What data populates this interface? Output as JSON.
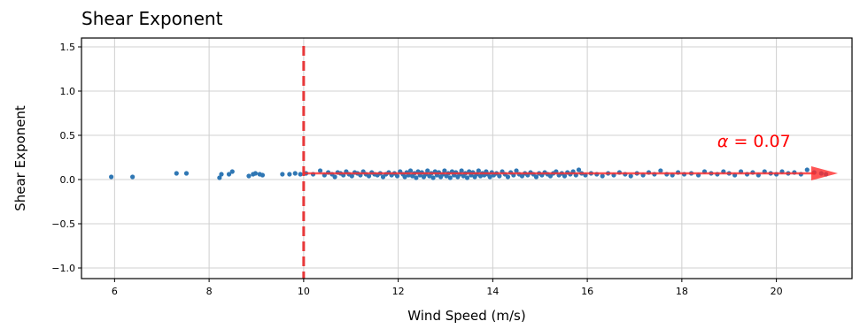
{
  "chart_data": {
    "type": "scatter",
    "title": "Shear Exponent",
    "xlabel": "Wind Speed (m/s)",
    "ylabel": "Shear Exponent",
    "xlim": [
      5.3,
      21.6
    ],
    "ylim": [
      -1.12,
      1.6
    ],
    "x_ticks": [
      6,
      8,
      10,
      12,
      14,
      16,
      18,
      20
    ],
    "x_tick_labels": [
      "6",
      "8",
      "10",
      "12",
      "14",
      "16",
      "18",
      "20"
    ],
    "y_ticks": [
      1.5,
      1.0,
      0.5,
      0.0,
      -0.5,
      -1.0
    ],
    "y_tick_labels": [
      "1.5",
      "1.0",
      "0.5",
      "0.0",
      "−0.5",
      "−1.0"
    ],
    "grid": true,
    "point_color": "#2f77b4",
    "cut_in_line": {
      "x": 10,
      "color": "#e8383a",
      "style": "dashed"
    },
    "fit_arrow": {
      "x_start": 10,
      "x_end": 21.3,
      "y": 0.07,
      "color": "#ff2a2a"
    },
    "annotation": {
      "text_symbol": "α",
      "text_value": " = 0.07",
      "color": "#ff0000"
    },
    "series": [
      {
        "points": [
          [
            5.93,
            0.03
          ],
          [
            6.38,
            0.03
          ],
          [
            7.31,
            0.07
          ],
          [
            7.52,
            0.07
          ],
          [
            8.22,
            0.02
          ],
          [
            8.26,
            0.06
          ],
          [
            8.42,
            0.06
          ],
          [
            8.49,
            0.09
          ],
          [
            8.84,
            0.04
          ],
          [
            8.93,
            0.06
          ],
          [
            8.98,
            0.07
          ],
          [
            9.07,
            0.06
          ],
          [
            9.13,
            0.05
          ],
          [
            9.55,
            0.06
          ],
          [
            9.7,
            0.06
          ],
          [
            9.82,
            0.07
          ],
          [
            9.93,
            0.06
          ],
          [
            10.05,
            0.07
          ],
          [
            10.2,
            0.06
          ],
          [
            10.35,
            0.1
          ],
          [
            10.44,
            0.05
          ],
          [
            10.52,
            0.08
          ],
          [
            10.6,
            0.06
          ],
          [
            10.66,
            0.03
          ],
          [
            10.72,
            0.08
          ],
          [
            10.78,
            0.07
          ],
          [
            10.84,
            0.05
          ],
          [
            10.9,
            0.09
          ],
          [
            10.96,
            0.06
          ],
          [
            11.02,
            0.04
          ],
          [
            11.08,
            0.08
          ],
          [
            11.14,
            0.07
          ],
          [
            11.2,
            0.05
          ],
          [
            11.26,
            0.09
          ],
          [
            11.32,
            0.06
          ],
          [
            11.38,
            0.04
          ],
          [
            11.44,
            0.08
          ],
          [
            11.5,
            0.06
          ],
          [
            11.56,
            0.05
          ],
          [
            11.62,
            0.07
          ],
          [
            11.68,
            0.03
          ],
          [
            11.74,
            0.06
          ],
          [
            11.8,
            0.08
          ],
          [
            11.86,
            0.05
          ],
          [
            11.92,
            0.07
          ],
          [
            11.98,
            0.04
          ],
          [
            12.04,
            0.09
          ],
          [
            12.1,
            0.06
          ],
          [
            12.14,
            0.03
          ],
          [
            12.18,
            0.08
          ],
          [
            12.22,
            0.05
          ],
          [
            12.26,
            0.1
          ],
          [
            12.3,
            0.04
          ],
          [
            12.34,
            0.07
          ],
          [
            12.38,
            0.02
          ],
          [
            12.42,
            0.09
          ],
          [
            12.46,
            0.05
          ],
          [
            12.5,
            0.08
          ],
          [
            12.54,
            0.03
          ],
          [
            12.58,
            0.06
          ],
          [
            12.62,
            0.1
          ],
          [
            12.66,
            0.04
          ],
          [
            12.7,
            0.07
          ],
          [
            12.74,
            0.02
          ],
          [
            12.78,
            0.09
          ],
          [
            12.82,
            0.05
          ],
          [
            12.86,
            0.08
          ],
          [
            12.9,
            0.03
          ],
          [
            12.94,
            0.06
          ],
          [
            12.98,
            0.1
          ],
          [
            13.02,
            0.04
          ],
          [
            13.06,
            0.07
          ],
          [
            13.1,
            0.02
          ],
          [
            13.14,
            0.09
          ],
          [
            13.18,
            0.05
          ],
          [
            13.22,
            0.08
          ],
          [
            13.26,
            0.03
          ],
          [
            13.3,
            0.06
          ],
          [
            13.34,
            0.1
          ],
          [
            13.38,
            0.04
          ],
          [
            13.42,
            0.07
          ],
          [
            13.46,
            0.02
          ],
          [
            13.5,
            0.09
          ],
          [
            13.54,
            0.05
          ],
          [
            13.58,
            0.08
          ],
          [
            13.62,
            0.03
          ],
          [
            13.66,
            0.06
          ],
          [
            13.7,
            0.1
          ],
          [
            13.74,
            0.04
          ],
          [
            13.78,
            0.07
          ],
          [
            13.82,
            0.05
          ],
          [
            13.86,
            0.09
          ],
          [
            13.9,
            0.06
          ],
          [
            13.94,
            0.03
          ],
          [
            13.98,
            0.08
          ],
          [
            14.02,
            0.05
          ],
          [
            14.08,
            0.07
          ],
          [
            14.14,
            0.04
          ],
          [
            14.2,
            0.09
          ],
          [
            14.26,
            0.06
          ],
          [
            14.32,
            0.03
          ],
          [
            14.38,
            0.08
          ],
          [
            14.44,
            0.05
          ],
          [
            14.5,
            0.1
          ],
          [
            14.56,
            0.06
          ],
          [
            14.62,
            0.04
          ],
          [
            14.68,
            0.07
          ],
          [
            14.74,
            0.05
          ],
          [
            14.8,
            0.08
          ],
          [
            14.86,
            0.06
          ],
          [
            14.92,
            0.03
          ],
          [
            14.98,
            0.07
          ],
          [
            15.04,
            0.05
          ],
          [
            15.1,
            0.08
          ],
          [
            15.16,
            0.06
          ],
          [
            15.22,
            0.04
          ],
          [
            15.28,
            0.07
          ],
          [
            15.34,
            0.09
          ],
          [
            15.4,
            0.05
          ],
          [
            15.46,
            0.07
          ],
          [
            15.52,
            0.04
          ],
          [
            15.58,
            0.08
          ],
          [
            15.64,
            0.06
          ],
          [
            15.7,
            0.09
          ],
          [
            15.76,
            0.05
          ],
          [
            15.82,
            0.11
          ],
          [
            15.88,
            0.07
          ],
          [
            15.96,
            0.05
          ],
          [
            16.08,
            0.07
          ],
          [
            16.2,
            0.06
          ],
          [
            16.32,
            0.04
          ],
          [
            16.44,
            0.07
          ],
          [
            16.56,
            0.05
          ],
          [
            16.68,
            0.08
          ],
          [
            16.8,
            0.06
          ],
          [
            16.92,
            0.04
          ],
          [
            17.05,
            0.07
          ],
          [
            17.18,
            0.05
          ],
          [
            17.3,
            0.08
          ],
          [
            17.42,
            0.06
          ],
          [
            17.55,
            0.1
          ],
          [
            17.68,
            0.06
          ],
          [
            17.8,
            0.05
          ],
          [
            17.92,
            0.08
          ],
          [
            18.05,
            0.06
          ],
          [
            18.2,
            0.07
          ],
          [
            18.35,
            0.05
          ],
          [
            18.48,
            0.09
          ],
          [
            18.62,
            0.07
          ],
          [
            18.75,
            0.06
          ],
          [
            18.88,
            0.09
          ],
          [
            19.0,
            0.07
          ],
          [
            19.12,
            0.05
          ],
          [
            19.25,
            0.09
          ],
          [
            19.38,
            0.06
          ],
          [
            19.5,
            0.08
          ],
          [
            19.62,
            0.05
          ],
          [
            19.75,
            0.09
          ],
          [
            19.88,
            0.07
          ],
          [
            20.0,
            0.06
          ],
          [
            20.12,
            0.09
          ],
          [
            20.25,
            0.07
          ],
          [
            20.38,
            0.08
          ],
          [
            20.52,
            0.06
          ],
          [
            20.65,
            0.11
          ],
          [
            20.8,
            0.08
          ],
          [
            20.95,
            0.07
          ],
          [
            21.05,
            0.06
          ]
        ]
      }
    ]
  }
}
